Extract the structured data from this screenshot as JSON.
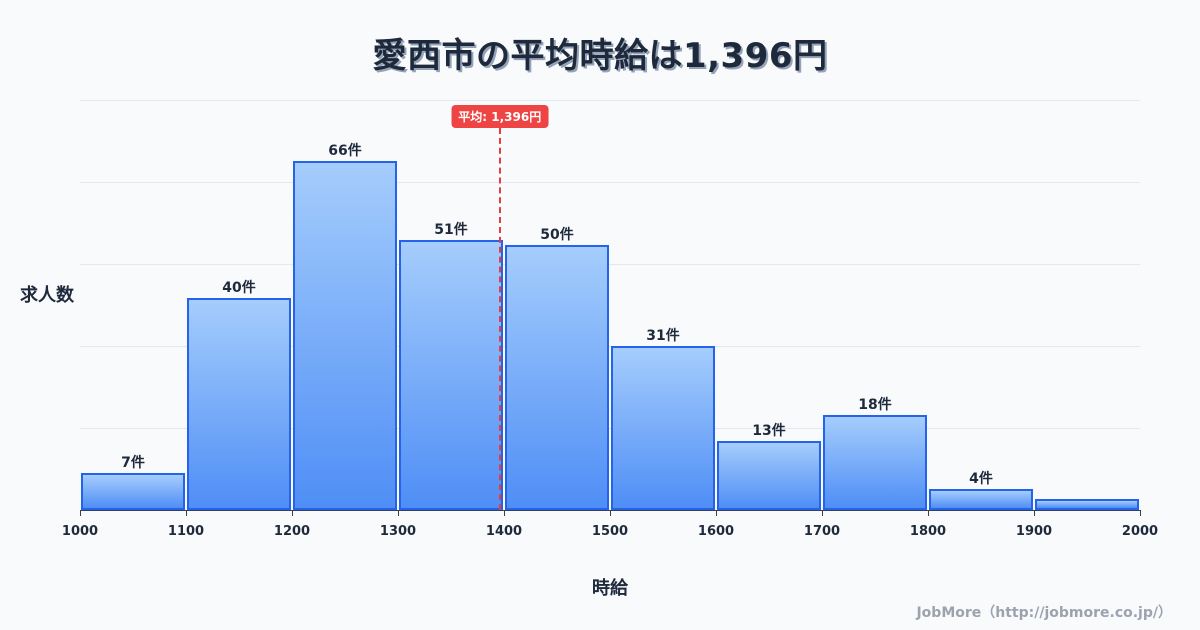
{
  "title": "愛西市の平均時給は1,396円",
  "average_badge": "平均: 1,396円",
  "ylabel": "求人数",
  "xlabel": "時給",
  "credit": "JobMore（http://jobmore.co.jp/）",
  "colors": {
    "bar_border": "#2563eb",
    "bar_top": "#a5cdfc",
    "bar_bottom": "#4f8ef6",
    "average_line": "#e53e3e",
    "badge_bg": "#ef4444",
    "background": "#f8fafc"
  },
  "chart_data": {
    "type": "bar",
    "title": "愛西市の平均時給は1,396円",
    "xlabel": "時給",
    "ylabel": "求人数",
    "bins": [
      [
        1000,
        1100
      ],
      [
        1100,
        1200
      ],
      [
        1200,
        1300
      ],
      [
        1300,
        1400
      ],
      [
        1400,
        1500
      ],
      [
        1500,
        1600
      ],
      [
        1600,
        1700
      ],
      [
        1700,
        1800
      ],
      [
        1800,
        1900
      ],
      [
        1900,
        2000
      ]
    ],
    "categories": [
      "1000-1100",
      "1100-1200",
      "1200-1300",
      "1300-1400",
      "1400-1500",
      "1500-1600",
      "1600-1700",
      "1700-1800",
      "1800-1900",
      "1900-2000"
    ],
    "values": [
      7,
      40,
      66,
      51,
      50,
      31,
      13,
      18,
      4,
      2
    ],
    "labels": [
      "7件",
      "40件",
      "66件",
      "51件",
      "50件",
      "31件",
      "13件",
      "18件",
      "4件",
      ""
    ],
    "x_ticks": [
      "1000",
      "1100",
      "1200",
      "1300",
      "1400",
      "1500",
      "1600",
      "1700",
      "1800",
      "1900",
      "2000"
    ],
    "average": 1396,
    "average_label": "平均: 1,396円",
    "ylim": [
      0,
      77.5
    ],
    "xlim": [
      1000,
      2000
    ],
    "grid": true,
    "legend": false
  }
}
